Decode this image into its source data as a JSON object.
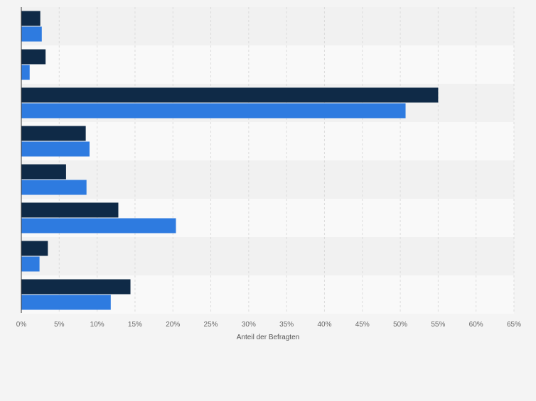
{
  "chart_data": {
    "type": "bar",
    "orientation": "horizontal",
    "categories": [
      "",
      "",
      "",
      "",
      "",
      "",
      "",
      ""
    ],
    "series": [
      {
        "color": "#0f2a47",
        "values": [
          2.5,
          3.2,
          55.0,
          8.5,
          5.9,
          12.8,
          3.5,
          14.4
        ]
      },
      {
        "color": "#2e7be0",
        "values": [
          2.7,
          1.1,
          50.7,
          9.0,
          8.6,
          20.4,
          2.4,
          11.8
        ]
      }
    ],
    "xlabel": "Anteil der Befragten",
    "xlim": [
      0,
      65
    ],
    "xticks": [
      "0%",
      "5%",
      "10%",
      "15%",
      "20%",
      "25%",
      "30%",
      "35%",
      "40%",
      "45%",
      "50%",
      "55%",
      "60%",
      "65%"
    ],
    "grid": true,
    "legend": "none",
    "colors": {
      "background": "#f4f4f4",
      "band_light": "#f9f9f9",
      "band_dark": "#f1f1f1",
      "grid": "#dcdcdc"
    }
  }
}
